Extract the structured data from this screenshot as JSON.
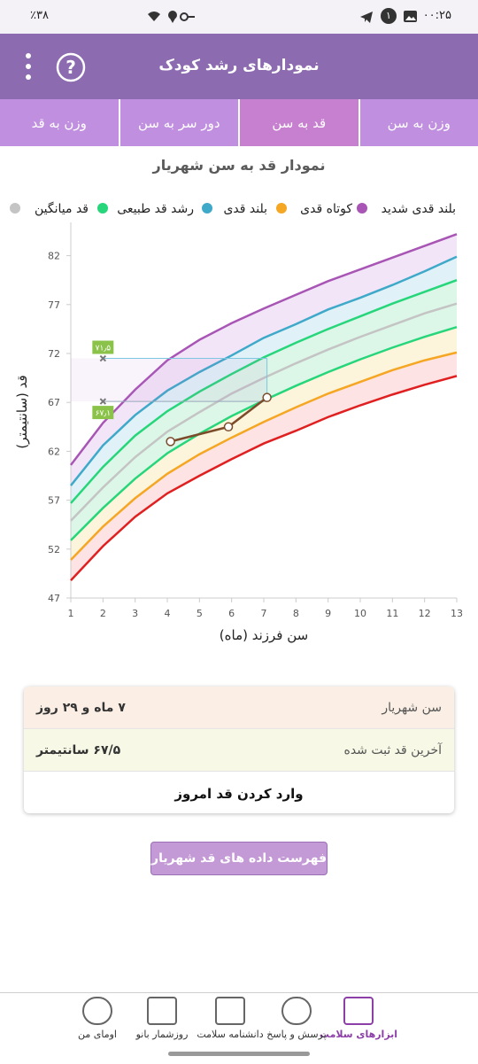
{
  "status_bar": {
    "time": "۰۰:۲۵",
    "battery": "٪۳۸",
    "badge": "۱"
  },
  "header": {
    "title": "نمودارهای رشد کودک"
  },
  "tabs": [
    "وزن به سن",
    "قد به سن",
    "دور سر به سن",
    "وزن به قد"
  ],
  "chart_data": {
    "type": "line",
    "title": "نمودار قد به سن شهریار",
    "x_label": "سن فرزند (ماه)",
    "y_label": "قد (سانتیمتر)",
    "x": [
      1,
      2,
      3,
      4,
      5,
      6,
      7,
      8,
      9,
      10,
      11,
      12,
      13
    ],
    "xlim": [
      1,
      13
    ],
    "xticks": [
      1,
      2,
      3,
      4,
      5,
      6,
      7,
      8,
      9,
      10,
      11,
      12,
      13
    ],
    "ylim": [
      47,
      84.5
    ],
    "yticks": [
      47,
      52,
      57,
      62,
      67,
      72,
      77,
      82
    ],
    "grid": false,
    "series": [
      {
        "name": "بلند قدی شدید",
        "color": "#a855b5",
        "values": [
          60.6,
          64.9,
          68.3,
          71.3,
          73.4,
          75.1,
          76.6,
          78.0,
          79.4,
          80.6,
          81.8,
          83.0,
          84.2
        ]
      },
      {
        "name": "بلند قدی",
        "color": "#3fa9c9",
        "values": [
          58.5,
          62.6,
          65.7,
          68.2,
          70.1,
          71.8,
          73.6,
          75.0,
          76.5,
          77.7,
          79.0,
          80.4,
          81.9
        ]
      },
      {
        "name": "رشد قد طبیعی",
        "color": "#27d67a",
        "values": [
          56.7,
          60.4,
          63.6,
          66.1,
          68.1,
          69.9,
          71.6,
          73.1,
          74.5,
          75.8,
          77.1,
          78.3,
          79.5
        ]
      },
      {
        "name": "قد میانگین",
        "color": "#c4c4c4",
        "values": [
          54.9,
          58.3,
          61.4,
          64.0,
          66.0,
          67.9,
          69.5,
          71.0,
          72.4,
          73.7,
          74.9,
          76.1,
          77.1
        ]
      },
      {
        "color": "#27d67a",
        "values": [
          52.9,
          56.2,
          59.2,
          61.8,
          63.8,
          65.6,
          67.2,
          68.7,
          70.1,
          71.4,
          72.6,
          73.7,
          74.7
        ]
      },
      {
        "name": "کوتاه قدی",
        "color": "#f5a623",
        "values": [
          50.9,
          54.3,
          57.2,
          59.7,
          61.7,
          63.4,
          65.0,
          66.5,
          67.9,
          69.1,
          70.3,
          71.3,
          72.1
        ]
      },
      {
        "color": "#e02020",
        "values": [
          48.8,
          52.3,
          55.3,
          57.7,
          59.5,
          61.2,
          62.8,
          64.1,
          65.5,
          66.7,
          67.8,
          68.8,
          69.7
        ]
      }
    ],
    "child": {
      "color": "#7b4b2a",
      "x": [
        4.1,
        5.9,
        7.1
      ],
      "values": [
        63.0,
        64.5,
        67.5
      ]
    },
    "annotations": [
      {
        "x": 2,
        "y": 71.5,
        "label": "۷۱٫۵"
      },
      {
        "x": 2,
        "y": 67.1,
        "label": "۶۷٫۱"
      }
    ]
  },
  "info": {
    "rows": [
      [
        "سن شهریار",
        "۷ ماه و ۲۹ روز"
      ],
      [
        "آخرین قد ثبت شده",
        "۶۷/۵ سانتیمتر"
      ]
    ],
    "action": "وارد کردن قد امروز"
  },
  "list_button": "فهرست داده های قد شهریار",
  "nav": [
    "ابزارهای سلامت",
    "پرسش و پاسخ",
    "دانشنامه سلامت",
    "روزشمار بانو",
    "اومای من"
  ]
}
